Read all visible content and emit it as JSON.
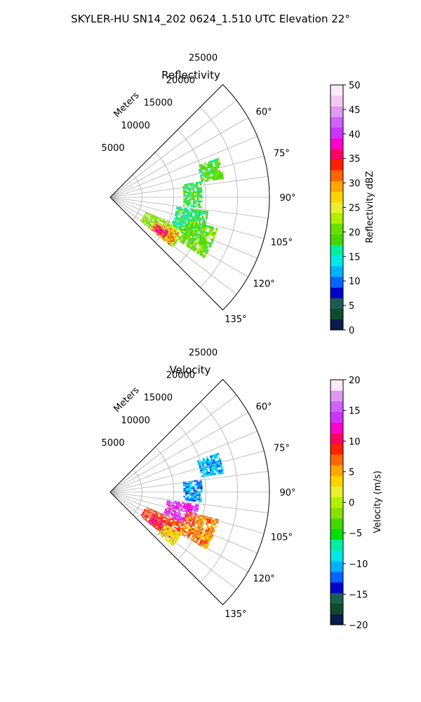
{
  "suptitle": "SKYLER-HU  SN14_202  0624_1.510 UTC Elevation 22°",
  "chart_data": [
    {
      "type": "heatmap",
      "title": "Reflectivity",
      "radial_axis_label": "Meters",
      "radial_ticks": [
        5000,
        10000,
        15000,
        20000,
        25000
      ],
      "radial_tick_labels": [
        "5000",
        "10000",
        "15000",
        "20000",
        "25000"
      ],
      "r_max": 25000,
      "theta_ticks": [
        60,
        75,
        90,
        105,
        120,
        135
      ],
      "theta_tick_labels": [
        "60°",
        "75°",
        "90°",
        "105°",
        "120°",
        "135°"
      ],
      "theta_range_deg": [
        45,
        135
      ],
      "grid": true,
      "colorbar": {
        "label": "Reflectivity dBZ",
        "range": [
          0,
          50
        ],
        "ticks": [
          0,
          5,
          10,
          15,
          20,
          25,
          30,
          35,
          40,
          45,
          50
        ],
        "tick_labels": [
          "0",
          "5",
          "10",
          "15",
          "20",
          "25",
          "30",
          "35",
          "40",
          "45",
          "50"
        ],
        "colors": [
          "#0a1b4d",
          "#0e4a2c",
          "#1a5e4f",
          "#0000cc",
          "#0066ff",
          "#00b2ff",
          "#00e8e8",
          "#00f0a0",
          "#44d800",
          "#66e000",
          "#b0f000",
          "#e8f030",
          "#ffd400",
          "#ffa500",
          "#ff6600",
          "#ff2200",
          "#ff0066",
          "#ff00cc",
          "#cc33ff",
          "#d060ff",
          "#e098f0",
          "#f4c8f4",
          "#fbe8fb"
        ]
      },
      "echo_regions": [
        {
          "az": [
            112,
            128
          ],
          "r": [
            6000,
            12500
          ],
          "value": 22
        },
        {
          "az": [
            117,
            128
          ],
          "r": [
            8000,
            12000
          ],
          "value": 30
        },
        {
          "az": [
            120,
            127
          ],
          "r": [
            8500,
            10500
          ],
          "value": 36
        },
        {
          "az": [
            98,
            114
          ],
          "r": [
            10500,
            15500
          ],
          "value": 17
        },
        {
          "az": [
            80,
            96
          ],
          "r": [
            11500,
            14500
          ],
          "value": 18
        },
        {
          "az": [
            70,
            80
          ],
          "r": [
            14500,
            18000
          ],
          "value": 19
        },
        {
          "az": [
            106,
            122
          ],
          "r": [
            12500,
            17500
          ],
          "value": 20
        }
      ]
    },
    {
      "type": "heatmap",
      "title": "Velocity",
      "radial_axis_label": "Meters",
      "radial_ticks": [
        5000,
        10000,
        15000,
        20000,
        25000
      ],
      "radial_tick_labels": [
        "5000",
        "10000",
        "15000",
        "20000",
        "25000"
      ],
      "r_max": 25000,
      "theta_ticks": [
        60,
        75,
        90,
        105,
        120,
        135
      ],
      "theta_tick_labels": [
        "60°",
        "75°",
        "90°",
        "105°",
        "120°",
        "135°"
      ],
      "theta_range_deg": [
        45,
        135
      ],
      "grid": true,
      "colorbar": {
        "label": "Velocity (m/s)",
        "range": [
          -20,
          20
        ],
        "ticks": [
          -20,
          -15,
          -10,
          -5,
          0,
          5,
          10,
          15,
          20
        ],
        "tick_labels": [
          "−20",
          "−15",
          "−10",
          "−5",
          "0",
          "5",
          "10",
          "15",
          "20"
        ],
        "colors": [
          "#0a1b4d",
          "#0e4a2c",
          "#1a5e4f",
          "#0000cc",
          "#0066ff",
          "#00b2ff",
          "#00e8e8",
          "#00f0a0",
          "#00e000",
          "#44d800",
          "#88e000",
          "#b0f000",
          "#e8f030",
          "#ffd400",
          "#ffa500",
          "#ff6600",
          "#ff2200",
          "#ff0066",
          "#ff00cc",
          "#cc33ff",
          "#d060ff",
          "#e098f0",
          "#fbe8fb"
        ]
      },
      "echo_regions": [
        {
          "az": [
            112,
            128
          ],
          "r": [
            6000,
            12500
          ],
          "value": 8
        },
        {
          "az": [
            118,
            128
          ],
          "r": [
            7500,
            11000
          ],
          "value": 10
        },
        {
          "az": [
            120,
            130
          ],
          "r": [
            10000,
            13000
          ],
          "value": 3
        },
        {
          "az": [
            98,
            112
          ],
          "r": [
            9000,
            14000
          ],
          "value": 14
        },
        {
          "az": [
            82,
            96
          ],
          "r": [
            11500,
            14500
          ],
          "value": -11
        },
        {
          "az": [
            70,
            80
          ],
          "r": [
            14500,
            18000
          ],
          "value": -10
        },
        {
          "az": [
            104,
            120
          ],
          "r": [
            12500,
            17500
          ],
          "value": 6
        }
      ]
    }
  ]
}
